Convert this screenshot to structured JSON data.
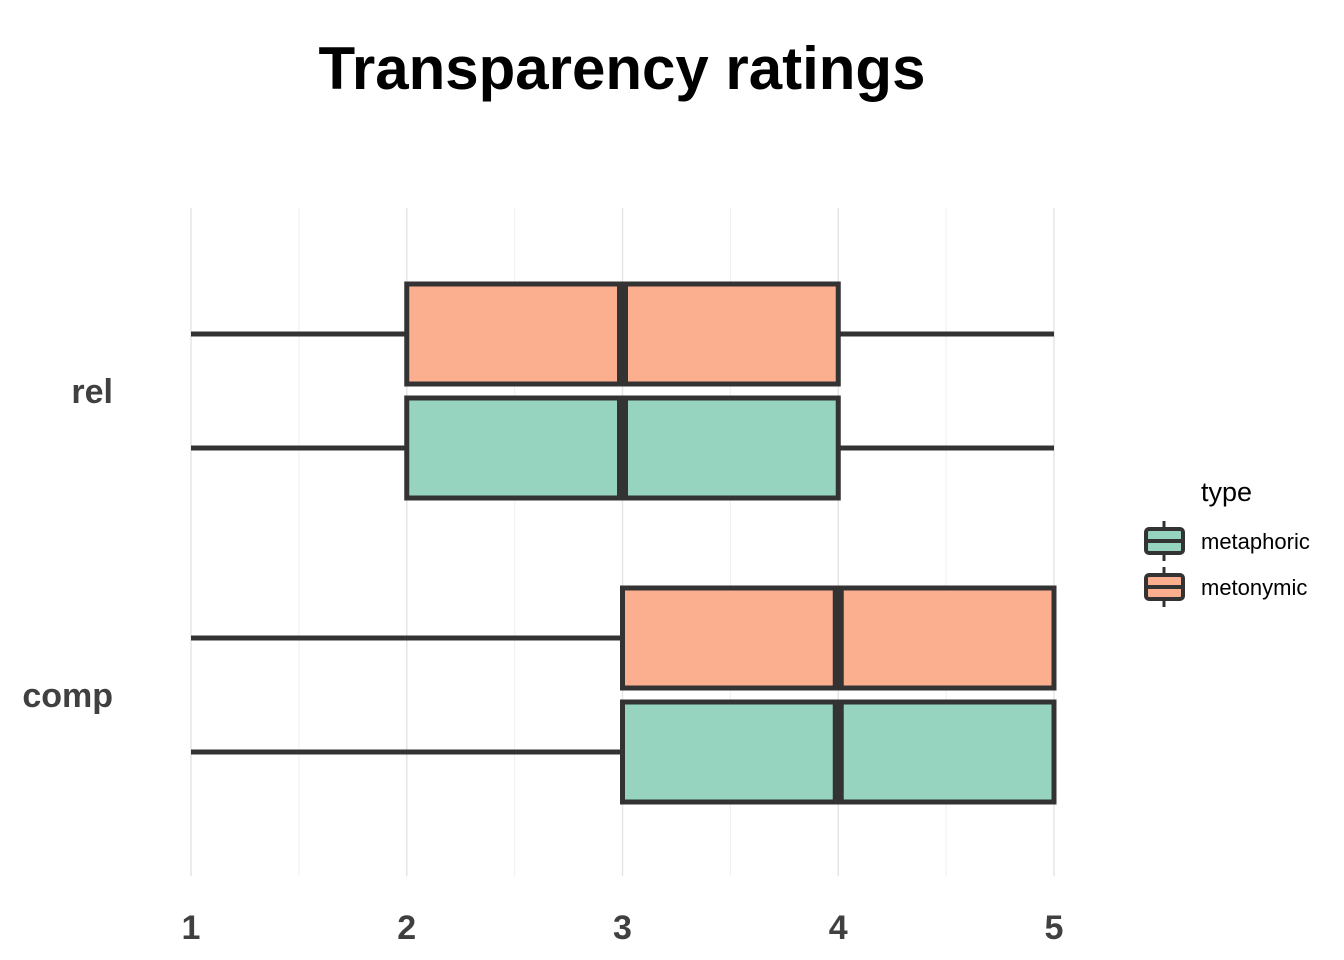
{
  "chart_data": {
    "type": "boxplot",
    "orientation": "horizontal",
    "title": "Transparency ratings",
    "xlabel": "",
    "ylabel": "",
    "xlim": [
      1,
      5
    ],
    "x_ticks": [
      "1",
      "2",
      "3",
      "4",
      "5"
    ],
    "categories": [
      "rel",
      "comp"
    ],
    "legend": {
      "title": "type",
      "placement": "right",
      "entries": [
        "metaphoric",
        "metonymic"
      ]
    },
    "colors": {
      "metaphoric": "#96d4c0",
      "metonymic": "#fbaf8f",
      "outline": "#333333"
    },
    "grid": true,
    "series": [
      {
        "name": "metaphoric",
        "boxes": [
          {
            "category": "rel",
            "min": 1,
            "q1": 2,
            "median": 3,
            "q3": 4,
            "max": 5
          },
          {
            "category": "comp",
            "min": 1,
            "q1": 3,
            "median": 4,
            "q3": 5,
            "max": 5
          }
        ]
      },
      {
        "name": "metonymic",
        "boxes": [
          {
            "category": "rel",
            "min": 1,
            "q1": 2,
            "median": 3,
            "q3": 4,
            "max": 5
          },
          {
            "category": "comp",
            "min": 1,
            "q1": 3,
            "median": 4,
            "q3": 5,
            "max": 5
          }
        ]
      }
    ]
  }
}
